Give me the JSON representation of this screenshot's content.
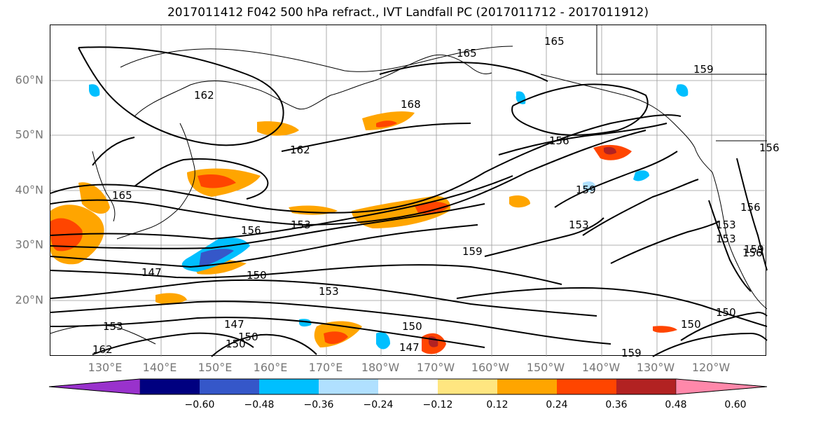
{
  "title": "2017011412 F042 500 hPa refract., IVT Landfall PC (2017011712 - 2017011912)",
  "map": {
    "lat_labels": [
      "60°N",
      "50°N",
      "40°N",
      "30°N",
      "20°N"
    ],
    "lon_labels": [
      "130°E",
      "140°E",
      "150°E",
      "160°E",
      "170°E",
      "180°W",
      "170°W",
      "160°W",
      "150°W",
      "140°W",
      "130°W",
      "120°W"
    ],
    "contour_labels": [
      "165",
      "168",
      "162",
      "162",
      "165",
      "159",
      "156",
      "156",
      "153",
      "153",
      "159",
      "147",
      "150",
      "153",
      "150",
      "147",
      "150",
      "153",
      "159",
      "162",
      "147",
      "150",
      "159",
      "156",
      "153",
      "150",
      "150",
      "156",
      "153",
      "156",
      "165",
      "159"
    ],
    "colors": {
      "land_outline": "#000000",
      "contour": "#000000",
      "grid": "#999999"
    }
  },
  "colorbar": {
    "ticks": [
      "−0.60",
      "−0.48",
      "−0.36",
      "−0.24",
      "−0.12",
      "0.12",
      "0.24",
      "0.36",
      "0.48",
      "0.60"
    ],
    "bins": [
      "#9932cc",
      "#000080",
      "#3557c9",
      "#00bfff",
      "#b0e0ff",
      "#ffffff",
      "#ffe680",
      "#ffa500",
      "#ff4500",
      "#b22222",
      "#ff88aa"
    ]
  }
}
